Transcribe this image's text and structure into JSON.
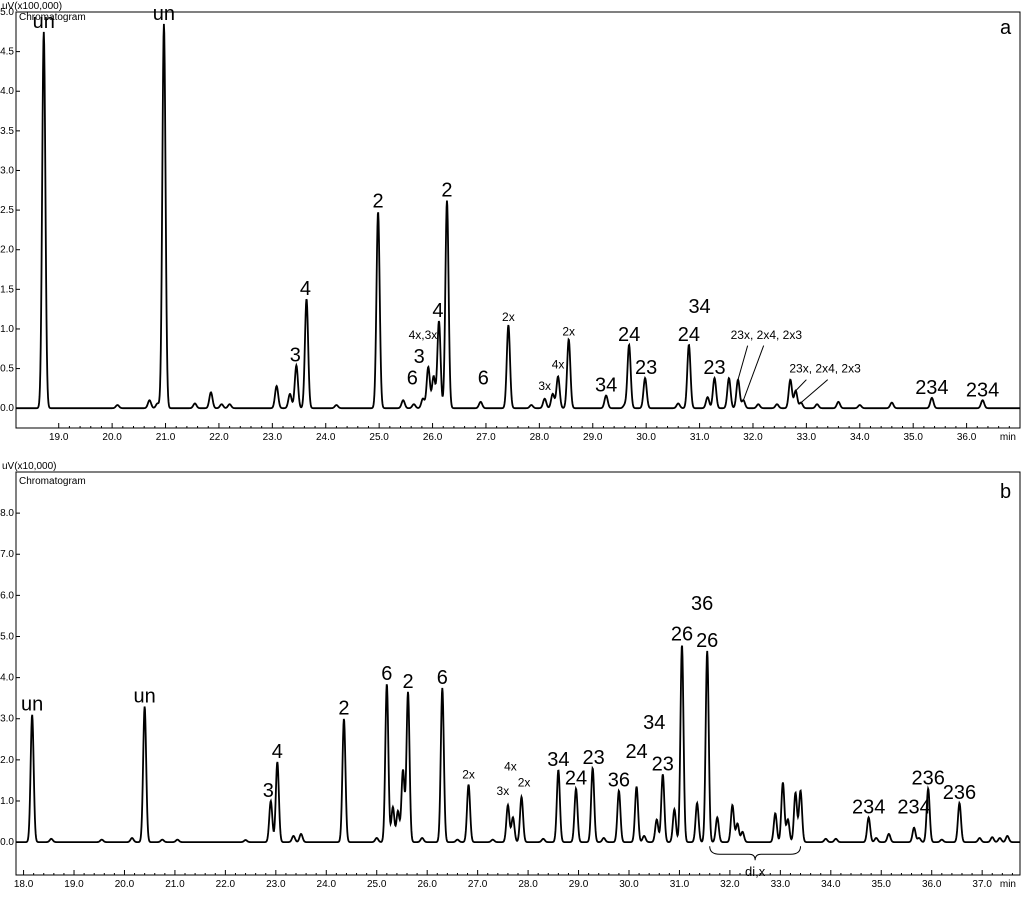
{
  "chart_data": [
    {
      "type": "line",
      "panel": "a",
      "y_unit_label": "uV(x100,000)",
      "chart_label": "Chromatogram",
      "x_unit_label": "min",
      "xlim": [
        18.2,
        37.0
      ],
      "ylim": [
        -0.25,
        5.0
      ],
      "x_ticks": [
        "19.0",
        "20.0",
        "21.0",
        "22.0",
        "23.0",
        "24.0",
        "25.0",
        "26.0",
        "27.0",
        "28.0",
        "29.0",
        "30.0",
        "31.0",
        "32.0",
        "33.0",
        "34.0",
        "35.0",
        "36.0"
      ],
      "y_ticks": [
        "0.0",
        "0.5",
        "1.0",
        "1.5",
        "2.0",
        "2.5",
        "3.0",
        "3.5",
        "4.0",
        "4.5",
        "5.0"
      ],
      "peaks": [
        {
          "x": 18.72,
          "h": 4.75
        },
        {
          "x": 20.97,
          "h": 4.85
        },
        {
          "x": 20.1,
          "h": 0.04
        },
        {
          "x": 20.7,
          "h": 0.1
        },
        {
          "x": 20.85,
          "h": 0.06
        },
        {
          "x": 21.55,
          "h": 0.06
        },
        {
          "x": 21.85,
          "h": 0.2
        },
        {
          "x": 22.05,
          "h": 0.05
        },
        {
          "x": 22.2,
          "h": 0.05
        },
        {
          "x": 23.08,
          "h": 0.28
        },
        {
          "x": 23.33,
          "h": 0.18
        },
        {
          "x": 23.45,
          "h": 0.54
        },
        {
          "x": 23.64,
          "h": 1.38
        },
        {
          "x": 24.2,
          "h": 0.04
        },
        {
          "x": 24.98,
          "h": 2.48
        },
        {
          "x": 25.45,
          "h": 0.1
        },
        {
          "x": 25.65,
          "h": 0.05
        },
        {
          "x": 25.82,
          "h": 0.12
        },
        {
          "x": 25.92,
          "h": 0.52
        },
        {
          "x": 26.02,
          "h": 0.4
        },
        {
          "x": 26.12,
          "h": 1.1
        },
        {
          "x": 26.27,
          "h": 2.62
        },
        {
          "x": 26.9,
          "h": 0.08
        },
        {
          "x": 27.42,
          "h": 1.05
        },
        {
          "x": 27.85,
          "h": 0.04
        },
        {
          "x": 28.1,
          "h": 0.12
        },
        {
          "x": 28.25,
          "h": 0.18
        },
        {
          "x": 28.35,
          "h": 0.4
        },
        {
          "x": 28.55,
          "h": 0.87
        },
        {
          "x": 29.25,
          "h": 0.16
        },
        {
          "x": 29.6,
          "h": 0.04
        },
        {
          "x": 29.68,
          "h": 0.8
        },
        {
          "x": 29.98,
          "h": 0.38
        },
        {
          "x": 30.6,
          "h": 0.06
        },
        {
          "x": 30.8,
          "h": 0.8
        },
        {
          "x": 31.15,
          "h": 0.14
        },
        {
          "x": 31.28,
          "h": 0.38
        },
        {
          "x": 31.55,
          "h": 0.38
        },
        {
          "x": 31.72,
          "h": 0.36
        },
        {
          "x": 31.82,
          "h": 0.1
        },
        {
          "x": 32.1,
          "h": 0.05
        },
        {
          "x": 32.45,
          "h": 0.05
        },
        {
          "x": 32.7,
          "h": 0.36
        },
        {
          "x": 32.8,
          "h": 0.22
        },
        {
          "x": 32.9,
          "h": 0.07
        },
        {
          "x": 33.2,
          "h": 0.05
        },
        {
          "x": 33.6,
          "h": 0.08
        },
        {
          "x": 34.0,
          "h": 0.04
        },
        {
          "x": 34.6,
          "h": 0.07
        },
        {
          "x": 35.35,
          "h": 0.13
        },
        {
          "x": 36.3,
          "h": 0.1
        }
      ],
      "annotations": [
        {
          "text": "un",
          "x": 18.72,
          "y": 4.75,
          "size": "lg"
        },
        {
          "text": "un",
          "x": 20.97,
          "y": 4.85,
          "size": "lg"
        },
        {
          "text": "3",
          "x": 23.43,
          "y": 0.54,
          "size": "lg"
        },
        {
          "text": "4",
          "x": 23.62,
          "y": 1.38,
          "size": "lg"
        },
        {
          "text": "2",
          "x": 24.98,
          "y": 2.48,
          "size": "lg"
        },
        {
          "text": "6",
          "x": 25.62,
          "y": 0.25,
          "size": "lg"
        },
        {
          "text": "4x,3x",
          "x": 25.82,
          "y": 0.82,
          "size": "sm"
        },
        {
          "text": "3",
          "x": 25.75,
          "y": 0.52,
          "size": "lg"
        },
        {
          "text": "4",
          "x": 26.1,
          "y": 1.1,
          "size": "lg"
        },
        {
          "text": "2",
          "x": 26.27,
          "y": 2.62,
          "size": "lg"
        },
        {
          "text": "6",
          "x": 26.95,
          "y": 0.25,
          "size": "lg"
        },
        {
          "text": "2x",
          "x": 27.42,
          "y": 1.05,
          "size": "sm"
        },
        {
          "text": "3x",
          "x": 28.1,
          "y": 0.18,
          "size": "sm"
        },
        {
          "text": "4x",
          "x": 28.35,
          "y": 0.45,
          "size": "sm"
        },
        {
          "text": "2x",
          "x": 28.55,
          "y": 0.87,
          "size": "sm"
        },
        {
          "text": "34",
          "x": 29.25,
          "y": 0.16,
          "size": "lg"
        },
        {
          "text": "24",
          "x": 29.68,
          "y": 0.8,
          "size": "lg"
        },
        {
          "text": "23",
          "x": 30.0,
          "y": 0.38,
          "size": "lg"
        },
        {
          "text": "34",
          "x": 31.0,
          "y": 1.15,
          "size": "lg"
        },
        {
          "text": "24",
          "x": 30.8,
          "y": 0.8,
          "size": "lg"
        },
        {
          "text": "23",
          "x": 31.28,
          "y": 0.38,
          "size": "lg"
        },
        {
          "text": "23x, 2x4, 2x3",
          "x": 32.25,
          "y": 0.82,
          "size": "sm"
        },
        {
          "text": "23x, 2x4, 2x3",
          "x": 33.35,
          "y": 0.4,
          "size": "sm"
        },
        {
          "text": "234",
          "x": 35.35,
          "y": 0.13,
          "size": "lg"
        },
        {
          "text": "234",
          "x": 36.3,
          "y": 0.1,
          "size": "lg"
        }
      ],
      "pointer_lines": [
        {
          "from": [
            31.9,
            0.79
          ],
          "to": [
            31.72,
            0.36
          ]
        },
        {
          "from": [
            32.2,
            0.79
          ],
          "to": [
            31.82,
            0.1
          ]
        },
        {
          "from": [
            33.0,
            0.36
          ],
          "to": [
            32.8,
            0.22
          ]
        },
        {
          "from": [
            33.4,
            0.36
          ],
          "to": [
            32.9,
            0.07
          ]
        }
      ]
    },
    {
      "type": "line",
      "panel": "b",
      "y_unit_label": "uV(x10,000)",
      "chart_label": "Chromatogram",
      "x_unit_label": "min",
      "xlim": [
        17.85,
        37.75
      ],
      "ylim": [
        -0.8,
        9.0
      ],
      "x_ticks": [
        "18.0",
        "19.0",
        "20.0",
        "21.0",
        "22.0",
        "23.0",
        "24.0",
        "25.0",
        "26.0",
        "27.0",
        "28.0",
        "29.0",
        "30.0",
        "31.0",
        "32.0",
        "33.0",
        "34.0",
        "35.0",
        "36.0",
        "37.0"
      ],
      "y_ticks": [
        "0.0",
        "1.0",
        "2.0",
        "3.0",
        "4.0",
        "5.0",
        "6.0",
        "7.0",
        "8.0"
      ],
      "peaks": [
        {
          "x": 18.17,
          "h": 3.1
        },
        {
          "x": 18.55,
          "h": 0.08
        },
        {
          "x": 19.55,
          "h": 0.06
        },
        {
          "x": 20.15,
          "h": 0.1
        },
        {
          "x": 20.4,
          "h": 3.3
        },
        {
          "x": 20.75,
          "h": 0.06
        },
        {
          "x": 21.05,
          "h": 0.06
        },
        {
          "x": 22.4,
          "h": 0.05
        },
        {
          "x": 22.9,
          "h": 1.0
        },
        {
          "x": 23.03,
          "h": 1.95
        },
        {
          "x": 23.35,
          "h": 0.15
        },
        {
          "x": 23.5,
          "h": 0.2
        },
        {
          "x": 24.35,
          "h": 3.0
        },
        {
          "x": 25.0,
          "h": 0.1
        },
        {
          "x": 25.2,
          "h": 3.85
        },
        {
          "x": 25.32,
          "h": 0.85
        },
        {
          "x": 25.42,
          "h": 0.75
        },
        {
          "x": 25.52,
          "h": 1.75
        },
        {
          "x": 25.62,
          "h": 3.65
        },
        {
          "x": 25.9,
          "h": 0.1
        },
        {
          "x": 26.3,
          "h": 3.75
        },
        {
          "x": 26.6,
          "h": 0.06
        },
        {
          "x": 26.82,
          "h": 1.4
        },
        {
          "x": 27.3,
          "h": 0.06
        },
        {
          "x": 27.6,
          "h": 0.9
        },
        {
          "x": 27.7,
          "h": 0.6
        },
        {
          "x": 27.87,
          "h": 1.1
        },
        {
          "x": 28.3,
          "h": 0.08
        },
        {
          "x": 28.6,
          "h": 1.75
        },
        {
          "x": 28.95,
          "h": 1.3
        },
        {
          "x": 29.28,
          "h": 1.8
        },
        {
          "x": 29.5,
          "h": 0.1
        },
        {
          "x": 29.8,
          "h": 1.25
        },
        {
          "x": 30.15,
          "h": 1.35
        },
        {
          "x": 30.3,
          "h": 0.15
        },
        {
          "x": 30.55,
          "h": 0.55
        },
        {
          "x": 30.67,
          "h": 1.65
        },
        {
          "x": 30.9,
          "h": 0.8
        },
        {
          "x": 31.05,
          "h": 4.8
        },
        {
          "x": 31.35,
          "h": 0.95
        },
        {
          "x": 31.55,
          "h": 4.65
        },
        {
          "x": 31.75,
          "h": 0.6
        },
        {
          "x": 32.05,
          "h": 0.9
        },
        {
          "x": 32.15,
          "h": 0.45
        },
        {
          "x": 32.25,
          "h": 0.25
        },
        {
          "x": 32.9,
          "h": 0.7
        },
        {
          "x": 33.05,
          "h": 1.45
        },
        {
          "x": 33.15,
          "h": 0.55
        },
        {
          "x": 33.3,
          "h": 1.2
        },
        {
          "x": 33.4,
          "h": 1.25
        },
        {
          "x": 33.9,
          "h": 0.08
        },
        {
          "x": 34.1,
          "h": 0.08
        },
        {
          "x": 34.75,
          "h": 0.6
        },
        {
          "x": 34.9,
          "h": 0.1
        },
        {
          "x": 35.15,
          "h": 0.2
        },
        {
          "x": 35.65,
          "h": 0.35
        },
        {
          "x": 35.75,
          "h": 0.1
        },
        {
          "x": 35.93,
          "h": 1.3
        },
        {
          "x": 36.2,
          "h": 0.06
        },
        {
          "x": 36.55,
          "h": 0.95
        },
        {
          "x": 36.95,
          "h": 0.1
        },
        {
          "x": 37.2,
          "h": 0.12
        },
        {
          "x": 37.35,
          "h": 0.1
        },
        {
          "x": 37.5,
          "h": 0.15
        }
      ],
      "annotations": [
        {
          "text": "un",
          "x": 18.17,
          "y": 3.1,
          "size": "lg"
        },
        {
          "text": "un",
          "x": 20.4,
          "y": 3.3,
          "size": "lg"
        },
        {
          "text": "3",
          "x": 22.85,
          "y": 1.0,
          "size": "lg"
        },
        {
          "text": "4",
          "x": 23.03,
          "y": 1.95,
          "size": "lg"
        },
        {
          "text": "2",
          "x": 24.35,
          "y": 3.0,
          "size": "lg"
        },
        {
          "text": "6",
          "x": 25.2,
          "y": 3.85,
          "size": "lg"
        },
        {
          "text": "2",
          "x": 25.62,
          "y": 3.65,
          "size": "lg"
        },
        {
          "text": "6",
          "x": 26.3,
          "y": 3.75,
          "size": "lg"
        },
        {
          "text": "2x",
          "x": 26.82,
          "y": 1.45,
          "size": "sm"
        },
        {
          "text": "3x",
          "x": 27.5,
          "y": 1.05,
          "size": "sm"
        },
        {
          "text": "4x",
          "x": 27.65,
          "y": 1.65,
          "size": "sm"
        },
        {
          "text": "2x",
          "x": 27.92,
          "y": 1.25,
          "size": "sm"
        },
        {
          "text": "34",
          "x": 28.6,
          "y": 1.75,
          "size": "lg"
        },
        {
          "text": "24",
          "x": 28.95,
          "y": 1.3,
          "size": "lg"
        },
        {
          "text": "23",
          "x": 29.3,
          "y": 1.8,
          "size": "lg"
        },
        {
          "text": "36",
          "x": 29.8,
          "y": 1.25,
          "size": "lg"
        },
        {
          "text": "34",
          "x": 30.5,
          "y": 2.65,
          "size": "lg"
        },
        {
          "text": "24",
          "x": 30.15,
          "y": 1.95,
          "size": "lg"
        },
        {
          "text": "23",
          "x": 30.67,
          "y": 1.65,
          "size": "lg"
        },
        {
          "text": "26",
          "x": 31.05,
          "y": 4.8,
          "size": "lg"
        },
        {
          "text": "36",
          "x": 31.45,
          "y": 5.55,
          "size": "lg"
        },
        {
          "text": "26",
          "x": 31.55,
          "y": 4.65,
          "size": "lg"
        },
        {
          "text": "234",
          "x": 34.75,
          "y": 0.6,
          "size": "lg"
        },
        {
          "text": "234",
          "x": 35.65,
          "y": 0.6,
          "size": "lg"
        },
        {
          "text": "236",
          "x": 35.93,
          "y": 1.3,
          "size": "lg"
        },
        {
          "text": "236",
          "x": 36.55,
          "y": 0.95,
          "size": "lg"
        }
      ],
      "brace": {
        "text": "di,x",
        "x_start": 31.6,
        "x_end": 33.4
      }
    }
  ]
}
